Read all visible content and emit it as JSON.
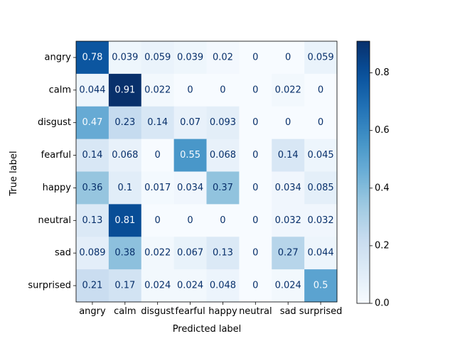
{
  "chart_data": {
    "type": "heatmap",
    "title": "",
    "xlabel": "Predicted label",
    "ylabel": "True label",
    "x_categories": [
      "angry",
      "calm",
      "disgust",
      "fearful",
      "happy",
      "neutral",
      "sad",
      "surprised"
    ],
    "y_categories": [
      "angry",
      "calm",
      "disgust",
      "fearful",
      "happy",
      "neutral",
      "sad",
      "surprised"
    ],
    "value_labels": [
      [
        "0.78",
        "0.039",
        "0.059",
        "0.039",
        "0.02",
        "0",
        "0",
        "0.059"
      ],
      [
        "0.044",
        "0.91",
        "0.022",
        "0",
        "0",
        "0",
        "0.022",
        "0"
      ],
      [
        "0.47",
        "0.23",
        "0.14",
        "0.07",
        "0.093",
        "0",
        "0",
        "0"
      ],
      [
        "0.14",
        "0.068",
        "0",
        "0.55",
        "0.068",
        "0",
        "0.14",
        "0.045"
      ],
      [
        "0.36",
        "0.1",
        "0.017",
        "0.034",
        "0.37",
        "0",
        "0.034",
        "0.085"
      ],
      [
        "0.13",
        "0.81",
        "0",
        "0",
        "0",
        "0",
        "0.032",
        "0.032"
      ],
      [
        "0.089",
        "0.38",
        "0.022",
        "0.067",
        "0.13",
        "0",
        "0.27",
        "0.044"
      ],
      [
        "0.21",
        "0.17",
        "0.024",
        "0.024",
        "0.048",
        "0",
        "0.024",
        "0.5"
      ]
    ],
    "colormap": "Blues",
    "colorbar": {
      "range": [
        0.0,
        0.91
      ],
      "tick_labels": [
        "0.0",
        "0.2",
        "0.4",
        "0.6",
        "0.8"
      ],
      "tick_values": [
        0.0,
        0.2,
        0.4,
        0.6,
        0.8
      ]
    },
    "grid": false
  }
}
